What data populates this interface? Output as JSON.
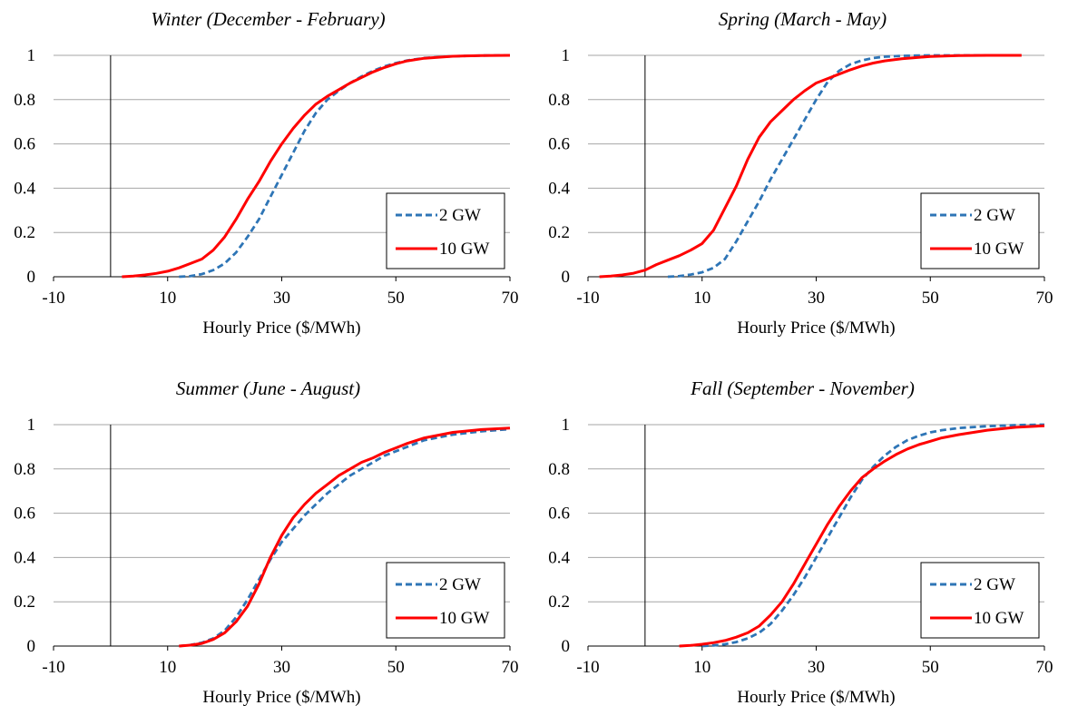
{
  "figure": {
    "x_axis_label": "Hourly Price ($/MWh)",
    "legend": [
      "2 GW",
      "10 GW"
    ]
  },
  "series_colors": {
    "2 GW": "#2e75b6",
    "10 GW": "#ff0000"
  },
  "chart_data": [
    {
      "type": "line",
      "title": "Winter (December - February)",
      "xlabel": "Hourly Price ($/MWh)",
      "ylabel": "",
      "xlim": [
        -10,
        70
      ],
      "ylim": [
        0,
        1
      ],
      "xticks": [
        "-10",
        "10",
        "30",
        "50",
        "70"
      ],
      "yticks": [
        "0",
        "0.2",
        "0.4",
        "0.6",
        "0.8",
        "1"
      ],
      "grid": "horizontal",
      "legend_position": "lower-right",
      "series": [
        {
          "name": "2 GW",
          "style": "dashed",
          "x": [
            12,
            14,
            16,
            18,
            20,
            22,
            24,
            26,
            28,
            30,
            32,
            34,
            36,
            38,
            40,
            42,
            44,
            46,
            48,
            50,
            52,
            55,
            60,
            65,
            70
          ],
          "y": [
            0,
            0.003,
            0.012,
            0.03,
            0.06,
            0.11,
            0.18,
            0.26,
            0.36,
            0.46,
            0.56,
            0.66,
            0.74,
            0.8,
            0.84,
            0.875,
            0.905,
            0.93,
            0.95,
            0.965,
            0.977,
            0.988,
            0.996,
            0.999,
            1
          ]
        },
        {
          "name": "10 GW",
          "style": "solid",
          "x": [
            2,
            4,
            6,
            8,
            10,
            12,
            14,
            16,
            18,
            20,
            22,
            24,
            26,
            28,
            30,
            32,
            34,
            36,
            38,
            40,
            42,
            44,
            46,
            48,
            50,
            52,
            55,
            60,
            65,
            70
          ],
          "y": [
            0,
            0.003,
            0.008,
            0.015,
            0.025,
            0.04,
            0.06,
            0.08,
            0.12,
            0.18,
            0.26,
            0.35,
            0.43,
            0.52,
            0.6,
            0.67,
            0.73,
            0.78,
            0.815,
            0.845,
            0.875,
            0.9,
            0.925,
            0.945,
            0.962,
            0.975,
            0.987,
            0.996,
            0.999,
            1
          ]
        }
      ]
    },
    {
      "type": "line",
      "title": "Spring (March - May)",
      "xlabel": "Hourly Price ($/MWh)",
      "ylabel": "",
      "xlim": [
        -10,
        70
      ],
      "ylim": [
        0,
        1
      ],
      "xticks": [
        "-10",
        "10",
        "30",
        "50",
        "70"
      ],
      "yticks": [
        "0",
        "0.2",
        "0.4",
        "0.6",
        "0.8",
        "1"
      ],
      "grid": "horizontal",
      "legend_position": "lower-right",
      "series": [
        {
          "name": "2 GW",
          "style": "dashed",
          "x": [
            4,
            6,
            8,
            10,
            12,
            14,
            16,
            18,
            20,
            22,
            24,
            26,
            28,
            30,
            32,
            34,
            36,
            38,
            40,
            42,
            45,
            50,
            55,
            60,
            66
          ],
          "y": [
            0,
            0.003,
            0.01,
            0.02,
            0.04,
            0.08,
            0.16,
            0.25,
            0.34,
            0.44,
            0.53,
            0.62,
            0.71,
            0.8,
            0.88,
            0.93,
            0.96,
            0.977,
            0.988,
            0.994,
            0.998,
            1,
            1,
            1,
            1
          ]
        },
        {
          "name": "10 GW",
          "style": "solid",
          "x": [
            -8,
            -6,
            -4,
            -2,
            0,
            2,
            4,
            6,
            8,
            10,
            12,
            14,
            16,
            18,
            20,
            22,
            24,
            26,
            28,
            30,
            32,
            34,
            36,
            38,
            40,
            42,
            45,
            50,
            55,
            60,
            66
          ],
          "y": [
            0,
            0.003,
            0.008,
            0.016,
            0.03,
            0.055,
            0.075,
            0.095,
            0.12,
            0.15,
            0.21,
            0.31,
            0.41,
            0.53,
            0.63,
            0.7,
            0.75,
            0.8,
            0.84,
            0.875,
            0.895,
            0.915,
            0.935,
            0.952,
            0.965,
            0.975,
            0.985,
            0.995,
            0.999,
            1,
            1
          ]
        }
      ]
    },
    {
      "type": "line",
      "title": "Summer (June - August)",
      "xlabel": "Hourly Price ($/MWh)",
      "ylabel": "",
      "xlim": [
        -10,
        70
      ],
      "ylim": [
        0,
        1
      ],
      "xticks": [
        "-10",
        "10",
        "30",
        "50",
        "70"
      ],
      "yticks": [
        "0",
        "0.2",
        "0.4",
        "0.6",
        "0.8",
        "1"
      ],
      "grid": "horizontal",
      "legend_position": "lower-right",
      "series": [
        {
          "name": "2 GW",
          "style": "dashed",
          "x": [
            12,
            14,
            16,
            18,
            20,
            22,
            24,
            26,
            28,
            30,
            32,
            34,
            36,
            38,
            40,
            42,
            44,
            46,
            48,
            50,
            52,
            55,
            60,
            65,
            70
          ],
          "y": [
            0,
            0.005,
            0.015,
            0.035,
            0.07,
            0.13,
            0.21,
            0.3,
            0.39,
            0.47,
            0.53,
            0.59,
            0.64,
            0.69,
            0.73,
            0.77,
            0.8,
            0.83,
            0.86,
            0.88,
            0.9,
            0.93,
            0.955,
            0.97,
            0.98
          ]
        },
        {
          "name": "10 GW",
          "style": "solid",
          "x": [
            12,
            14,
            16,
            18,
            20,
            22,
            24,
            26,
            28,
            30,
            32,
            34,
            36,
            38,
            40,
            42,
            44,
            46,
            48,
            50,
            52,
            55,
            60,
            65,
            70
          ],
          "y": [
            0,
            0.004,
            0.012,
            0.03,
            0.06,
            0.11,
            0.18,
            0.28,
            0.4,
            0.5,
            0.58,
            0.64,
            0.69,
            0.73,
            0.77,
            0.8,
            0.83,
            0.85,
            0.875,
            0.895,
            0.915,
            0.94,
            0.965,
            0.978,
            0.985
          ]
        }
      ]
    },
    {
      "type": "line",
      "title": "Fall (September - November)",
      "xlabel": "Hourly Price ($/MWh)",
      "ylabel": "",
      "xlim": [
        -10,
        70
      ],
      "ylim": [
        0,
        1
      ],
      "xticks": [
        "-10",
        "10",
        "30",
        "50",
        "70"
      ],
      "yticks": [
        "0",
        "0.2",
        "0.4",
        "0.6",
        "0.8",
        "1"
      ],
      "grid": "horizontal",
      "legend_position": "lower-right",
      "series": [
        {
          "name": "2 GW",
          "style": "dashed",
          "x": [
            10,
            12,
            14,
            16,
            18,
            20,
            22,
            24,
            26,
            28,
            30,
            32,
            34,
            36,
            38,
            40,
            42,
            44,
            46,
            48,
            50,
            52,
            55,
            60,
            65,
            70
          ],
          "y": [
            0,
            0.003,
            0.008,
            0.018,
            0.035,
            0.06,
            0.1,
            0.16,
            0.23,
            0.31,
            0.4,
            0.49,
            0.58,
            0.67,
            0.75,
            0.81,
            0.86,
            0.9,
            0.93,
            0.95,
            0.965,
            0.975,
            0.985,
            0.993,
            0.998,
            1
          ]
        },
        {
          "name": "10 GW",
          "style": "solid",
          "x": [
            6,
            8,
            10,
            12,
            14,
            16,
            18,
            20,
            22,
            24,
            26,
            28,
            30,
            32,
            34,
            36,
            38,
            40,
            42,
            44,
            46,
            48,
            50,
            52,
            55,
            60,
            65,
            70
          ],
          "y": [
            0,
            0.003,
            0.008,
            0.015,
            0.025,
            0.04,
            0.06,
            0.09,
            0.14,
            0.2,
            0.28,
            0.37,
            0.46,
            0.55,
            0.63,
            0.7,
            0.76,
            0.8,
            0.835,
            0.865,
            0.89,
            0.91,
            0.925,
            0.94,
            0.955,
            0.975,
            0.988,
            0.995
          ]
        }
      ]
    }
  ]
}
